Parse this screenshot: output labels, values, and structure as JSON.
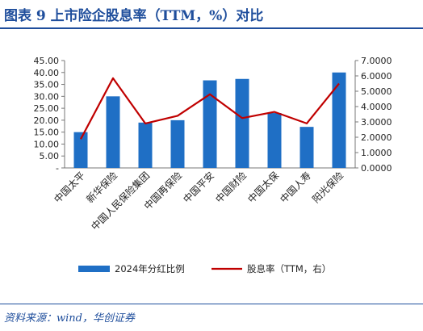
{
  "header": {
    "title": "图表 9   上市险企股息率（TTM，%）对比"
  },
  "footer": {
    "source": "资料来源：wind，华创证券"
  },
  "chart_data": {
    "type": "bar+line",
    "categories": [
      "中国太平",
      "新华保险",
      "中国人民保险集团",
      "中国再保险",
      "中国平安",
      "中国财险",
      "中国太保",
      "中国人寿",
      "阳光保险"
    ],
    "series": [
      {
        "name": "2024年分红比例",
        "type": "bar",
        "axis": "left",
        "values": [
          15.0,
          30.0,
          19.0,
          20.0,
          36.7,
          37.3,
          23.0,
          17.2,
          40.0
        ]
      },
      {
        "name": "股息率（TTM，右）",
        "type": "line",
        "axis": "right",
        "values": [
          1.88,
          5.85,
          2.9,
          3.4,
          4.8,
          3.25,
          3.65,
          2.9,
          5.5
        ]
      }
    ],
    "ylim": [
      0,
      45
    ],
    "y_ticks": [
      "-",
      "5.00",
      "10.00",
      "15.00",
      "20.00",
      "25.00",
      "30.00",
      "35.00",
      "40.00",
      "45.00"
    ],
    "y2lim": [
      0,
      7
    ],
    "y2_ticks": [
      "0.0000",
      "1.0000",
      "2.0000",
      "3.0000",
      "4.0000",
      "5.0000",
      "6.0000",
      "7.0000"
    ],
    "colors": {
      "bar": "#1f6fc5",
      "line": "#c00000"
    },
    "legend_position": "bottom",
    "grid": false
  }
}
